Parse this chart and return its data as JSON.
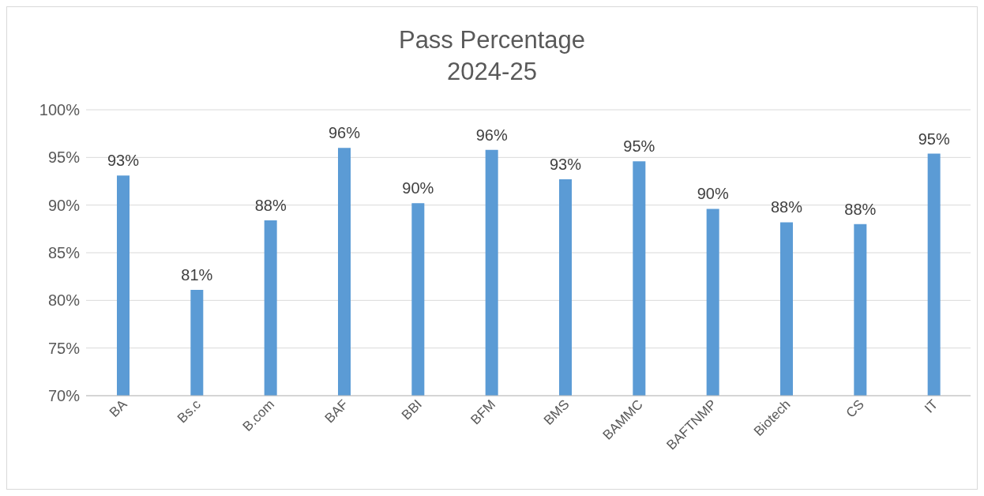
{
  "chart_data": {
    "type": "bar",
    "title": "Pass Percentage",
    "subtitle": "2024-25",
    "categories": [
      "BA",
      "Bs.c",
      "B.com",
      "BAF",
      "BBI",
      "BFM",
      "BMS",
      "BAMMC",
      "BAFTNMP",
      "Biotech",
      "CS",
      "IT"
    ],
    "values": [
      93.1,
      81.1,
      88.4,
      96.0,
      90.2,
      95.8,
      92.7,
      94.6,
      89.6,
      88.2,
      88.0,
      95.4
    ],
    "value_labels": [
      "93%",
      "81%",
      "88%",
      "96%",
      "90%",
      "96%",
      "93%",
      "95%",
      "90%",
      "88%",
      "88%",
      "95%"
    ],
    "color": "#5b9bd5",
    "ylim": [
      70,
      100
    ],
    "yticks": [
      {
        "value": 70,
        "label": "70%"
      },
      {
        "value": 75,
        "label": "75%"
      },
      {
        "value": 80,
        "label": "80%"
      },
      {
        "value": 85,
        "label": "85%"
      },
      {
        "value": 90,
        "label": "90%"
      },
      {
        "value": 95,
        "label": "95%"
      },
      {
        "value": 100,
        "label": "100%"
      }
    ],
    "grid": "y"
  }
}
